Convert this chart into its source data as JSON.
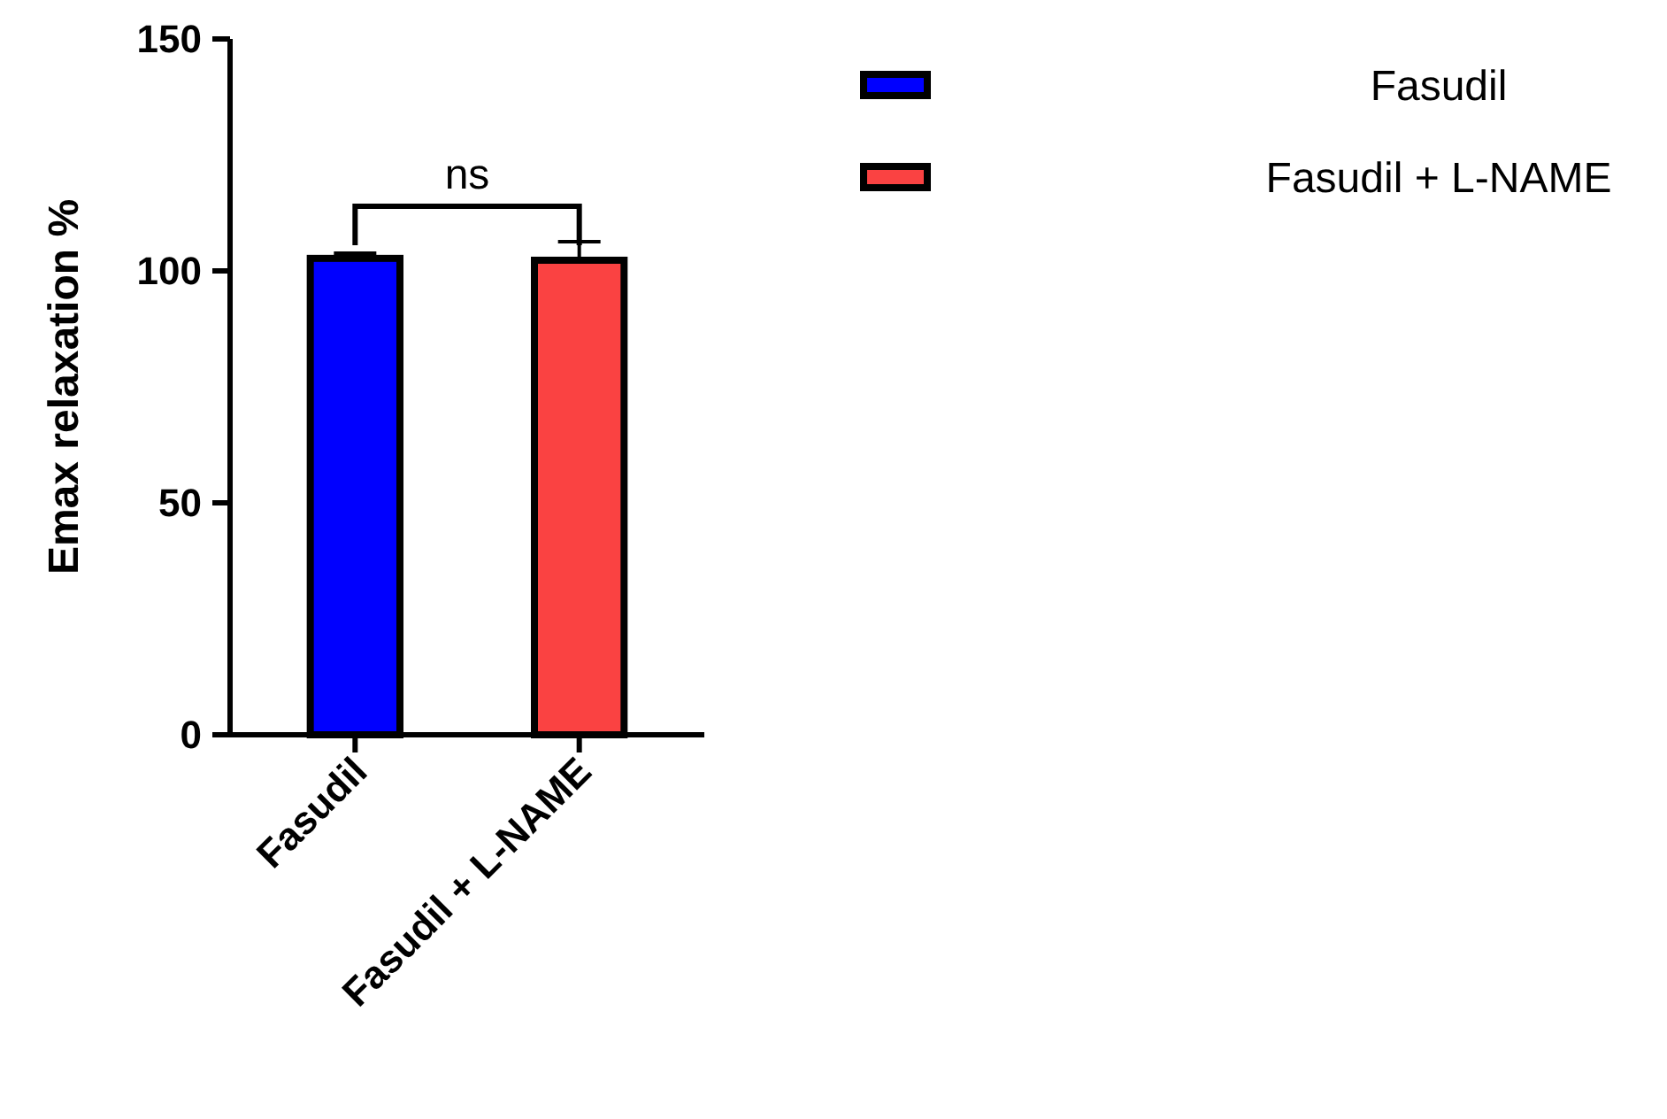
{
  "chart_data": {
    "type": "bar",
    "ylabel": "Emax relaxation %",
    "categories": [
      "Fasudil",
      "Fasudil + L-NAME"
    ],
    "series": [
      {
        "name": "Fasudil",
        "color": "#0000ff",
        "values": [
          102.7,
          null
        ],
        "errors": [
          [
            102.7,
            103.8
          ],
          null
        ]
      },
      {
        "name": "Fasudil + L-NAME",
        "color": "#fa4242",
        "values": [
          null,
          102.3
        ],
        "errors": [
          null,
          [
            102.3,
            106.3
          ]
        ]
      }
    ],
    "ylim": [
      0,
      150
    ],
    "yticks": [
      0,
      50,
      100,
      150
    ],
    "grid": false,
    "legend": "top right",
    "annotations": [
      "ns"
    ]
  }
}
